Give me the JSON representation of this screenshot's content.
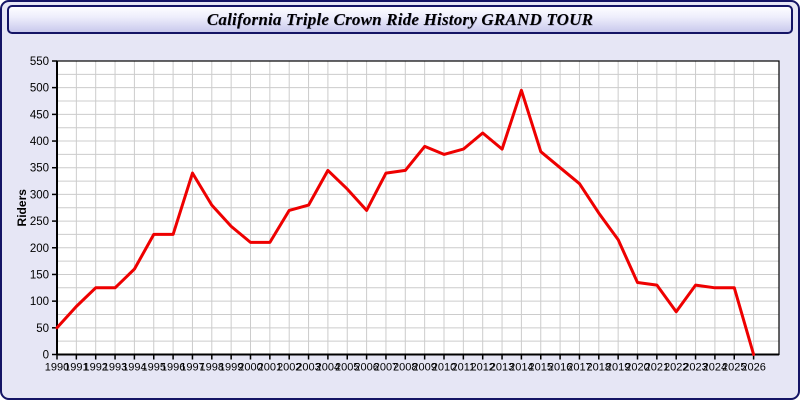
{
  "window": {
    "title": "California Triple Crown Ride History GRAND TOUR"
  },
  "colors": {
    "page_background": "#e6e6f5",
    "frame_border": "#141465",
    "plot_background": "#ffffff",
    "gridline": "#cccccc",
    "axis": "#000000",
    "line": "#ee0000",
    "tick_label": "#000000"
  },
  "chart_data": {
    "type": "line",
    "title": "California Triple Crown Ride History GRAND TOUR",
    "xlabel": "",
    "ylabel": "Riders",
    "legend": "none",
    "grid": true,
    "ylim": [
      0,
      550
    ],
    "y_label_step": 50,
    "y_grid_step": 25,
    "x": [
      1990,
      1991,
      1992,
      1993,
      1994,
      1995,
      1996,
      1997,
      1998,
      1999,
      2000,
      2001,
      2002,
      2003,
      2004,
      2005,
      2006,
      2007,
      2008,
      2009,
      2010,
      2011,
      2012,
      2013,
      2014,
      2015,
      2016,
      2017,
      2018,
      2019,
      2020,
      2021,
      2022,
      2023,
      2024,
      2025,
      2026
    ],
    "series": [
      {
        "name": "Riders",
        "values": [
          50,
          90,
          125,
          125,
          160,
          225,
          225,
          340,
          280,
          240,
          210,
          210,
          270,
          280,
          345,
          310,
          270,
          340,
          345,
          390,
          375,
          385,
          415,
          385,
          495,
          380,
          350,
          320,
          265,
          215,
          135,
          130,
          80,
          130,
          125,
          125,
          0
        ]
      }
    ]
  }
}
